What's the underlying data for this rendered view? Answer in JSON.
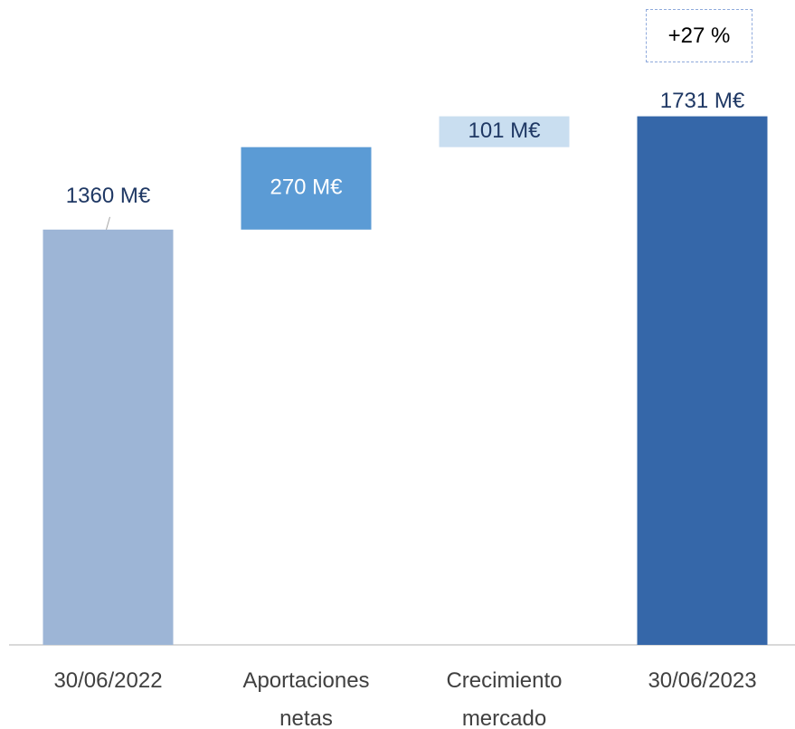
{
  "chart_data": {
    "type": "waterfall",
    "categories": [
      "30/06/2022",
      "Aportaciones netas",
      "Crecimiento mercado",
      "30/06/2023"
    ],
    "values": [
      1360,
      270,
      101,
      1731
    ],
    "value_labels": [
      "1360 M€",
      "270 M€",
      "101 M€",
      "1731 M€"
    ],
    "measures": [
      "absolute",
      "relative",
      "relative",
      "total"
    ],
    "colors": [
      "#9db5d6",
      "#5b9bd5",
      "#c9def0",
      "#3567a9"
    ],
    "label_colors": [
      "#1f3864",
      "#ffffff",
      "#1f3864",
      "#1f3864"
    ],
    "ylim": [
      0,
      2100
    ],
    "annotation": "+27 %"
  }
}
